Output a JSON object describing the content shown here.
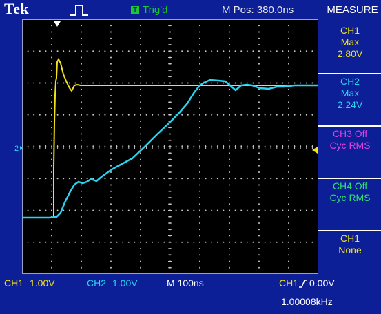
{
  "header": {
    "brand": "Tek",
    "trig_box": "T",
    "trigger_status": "Trig'd",
    "horizontal_position": "M Pos: 380.0ns",
    "menu_title": "MEASURE"
  },
  "measure_menu": [
    {
      "line1": "CH1",
      "line2": "Max",
      "line3": "2.80V",
      "color": "#f2e21a"
    },
    {
      "line1": "CH2",
      "line2": "Max",
      "line3": "2.24V",
      "color": "#2ad3f0"
    },
    {
      "line1": "CH3 Off",
      "line2": "Cyc RMS",
      "line3": "",
      "color": "#e040e0"
    },
    {
      "line1": "CH4 Off",
      "line2": "Cyc RMS",
      "line3": "",
      "color": "#2ee070"
    },
    {
      "line1": "CH1",
      "line2": "None",
      "line3": "",
      "color": "#f2e21a"
    }
  ],
  "footer": {
    "ch1_label": "CH1",
    "ch1_scale": "1.00V",
    "ch2_label": "CH2",
    "ch2_scale": "1.00V",
    "timebase": "M 100ns",
    "trigger_source": "CH1",
    "trigger_level": "0.00V",
    "frequency": "1.00008kHz"
  },
  "colors": {
    "ch1": "#f2e21a",
    "ch2": "#2ad3f0",
    "screen_bg": "#0d1f96",
    "grid": "#c8c8c8"
  },
  "icons": {
    "trigger_position_marker": "white-down-arrow-icon",
    "ch2_ground_marker": "ground-marker-icon",
    "trigger_level_marker": "trigger-level-arrow-icon",
    "rising_edge_icon": "rising-edge-icon"
  }
}
